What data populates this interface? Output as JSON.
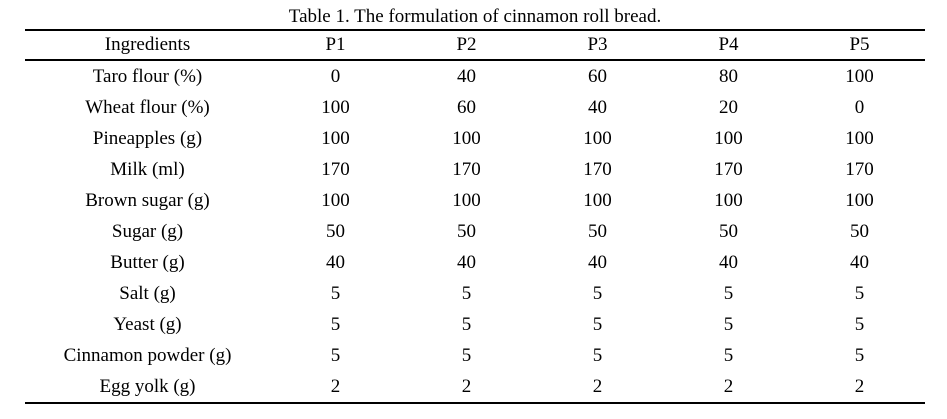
{
  "table": {
    "caption": "Table 1. The formulation of cinnamon roll bread.",
    "columns": [
      "Ingredients",
      "P1",
      "P2",
      "P3",
      "P4",
      "P5"
    ],
    "rows": [
      {
        "ingredient": "Taro flour (%)",
        "values": [
          "0",
          "40",
          "60",
          "80",
          "100"
        ]
      },
      {
        "ingredient": "Wheat flour (%)",
        "values": [
          "100",
          "60",
          "40",
          "20",
          "0"
        ]
      },
      {
        "ingredient": "Pineapples (g)",
        "values": [
          "100",
          "100",
          "100",
          "100",
          "100"
        ]
      },
      {
        "ingredient": "Milk (ml)",
        "values": [
          "170",
          "170",
          "170",
          "170",
          "170"
        ]
      },
      {
        "ingredient": "Brown sugar (g)",
        "values": [
          "100",
          "100",
          "100",
          "100",
          "100"
        ]
      },
      {
        "ingredient": "Sugar (g)",
        "values": [
          "50",
          "50",
          "50",
          "50",
          "50"
        ]
      },
      {
        "ingredient": "Butter (g)",
        "values": [
          "40",
          "40",
          "40",
          "40",
          "40"
        ]
      },
      {
        "ingredient": "Salt (g)",
        "values": [
          "5",
          "5",
          "5",
          "5",
          "5"
        ]
      },
      {
        "ingredient": "Yeast (g)",
        "values": [
          "5",
          "5",
          "5",
          "5",
          "5"
        ]
      },
      {
        "ingredient": "Cinnamon powder (g)",
        "values": [
          "5",
          "5",
          "5",
          "5",
          "5"
        ]
      },
      {
        "ingredient": "Egg yolk (g)",
        "values": [
          "2",
          "2",
          "2",
          "2",
          "2"
        ]
      }
    ]
  }
}
